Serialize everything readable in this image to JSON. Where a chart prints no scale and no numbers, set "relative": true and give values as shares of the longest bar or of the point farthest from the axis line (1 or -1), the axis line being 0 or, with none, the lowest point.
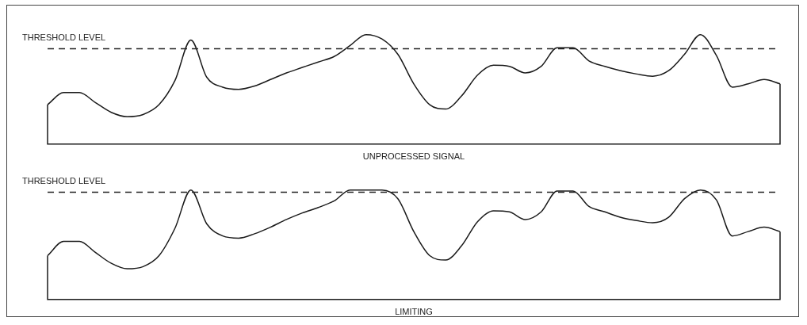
{
  "chart_data": [
    {
      "type": "line",
      "xlabel": "UNPROCESSED SIGNAL",
      "relative": true,
      "color": "#1a1a1a",
      "categories": [
        null,
        null,
        null,
        null,
        null,
        null,
        null,
        null,
        null,
        null,
        null,
        null,
        null,
        null,
        null,
        null,
        null,
        null,
        null,
        null,
        null,
        null,
        null,
        null,
        null,
        null,
        null,
        null,
        null,
        null,
        null,
        null,
        null,
        null,
        null,
        null,
        null,
        null,
        null,
        null,
        null,
        null,
        null,
        null,
        null,
        null,
        null
      ],
      "values": [
        0.36,
        0.47,
        0.47,
        0.38,
        0.29,
        0.25,
        0.27,
        0.36,
        0.58,
        0.95,
        0.61,
        0.52,
        0.5,
        0.53,
        0.59,
        0.65,
        0.7,
        0.75,
        0.8,
        0.9,
        1,
        0.96,
        0.82,
        0.55,
        0.36,
        0.32,
        0.44,
        0.63,
        0.72,
        0.71,
        0.65,
        0.71,
        0.88,
        0.88,
        0.76,
        0.71,
        0.67,
        0.64,
        0.62,
        0.67,
        0.82,
        1,
        0.81,
        0.52,
        0.55,
        0.59,
        0.55
      ],
      "ref_lines": [
        {
          "axis": "y",
          "value": 0.87,
          "label": "THRESHOLD LEVEL",
          "line_style": "dashed",
          "color": "#222222"
        }
      ]
    },
    {
      "type": "line",
      "xlabel": "LIMITING",
      "relative": true,
      "color": "#1a1a1a",
      "categories": [
        null,
        null,
        null,
        null,
        null,
        null,
        null,
        null,
        null,
        null,
        null,
        null,
        null,
        null,
        null,
        null,
        null,
        null,
        null,
        null,
        null,
        null,
        null,
        null,
        null,
        null,
        null,
        null,
        null,
        null,
        null,
        null,
        null,
        null,
        null,
        null,
        null,
        null,
        null,
        null,
        null,
        null,
        null,
        null,
        null,
        null,
        null
      ],
      "values": [
        0.4,
        0.53,
        0.53,
        0.43,
        0.33,
        0.28,
        0.3,
        0.4,
        0.65,
        1,
        0.69,
        0.58,
        0.56,
        0.6,
        0.66,
        0.73,
        0.79,
        0.84,
        0.9,
        1,
        1,
        1,
        0.92,
        0.62,
        0.4,
        0.36,
        0.49,
        0.71,
        0.81,
        0.8,
        0.73,
        0.8,
        0.99,
        0.99,
        0.85,
        0.8,
        0.75,
        0.72,
        0.7,
        0.75,
        0.92,
        1,
        0.91,
        0.58,
        0.62,
        0.66,
        0.62
      ],
      "ref_lines": [
        {
          "axis": "y",
          "value": 0.98,
          "label": "THRESHOLD LEVEL",
          "line_style": "dashed",
          "color": "#222222"
        }
      ]
    }
  ]
}
